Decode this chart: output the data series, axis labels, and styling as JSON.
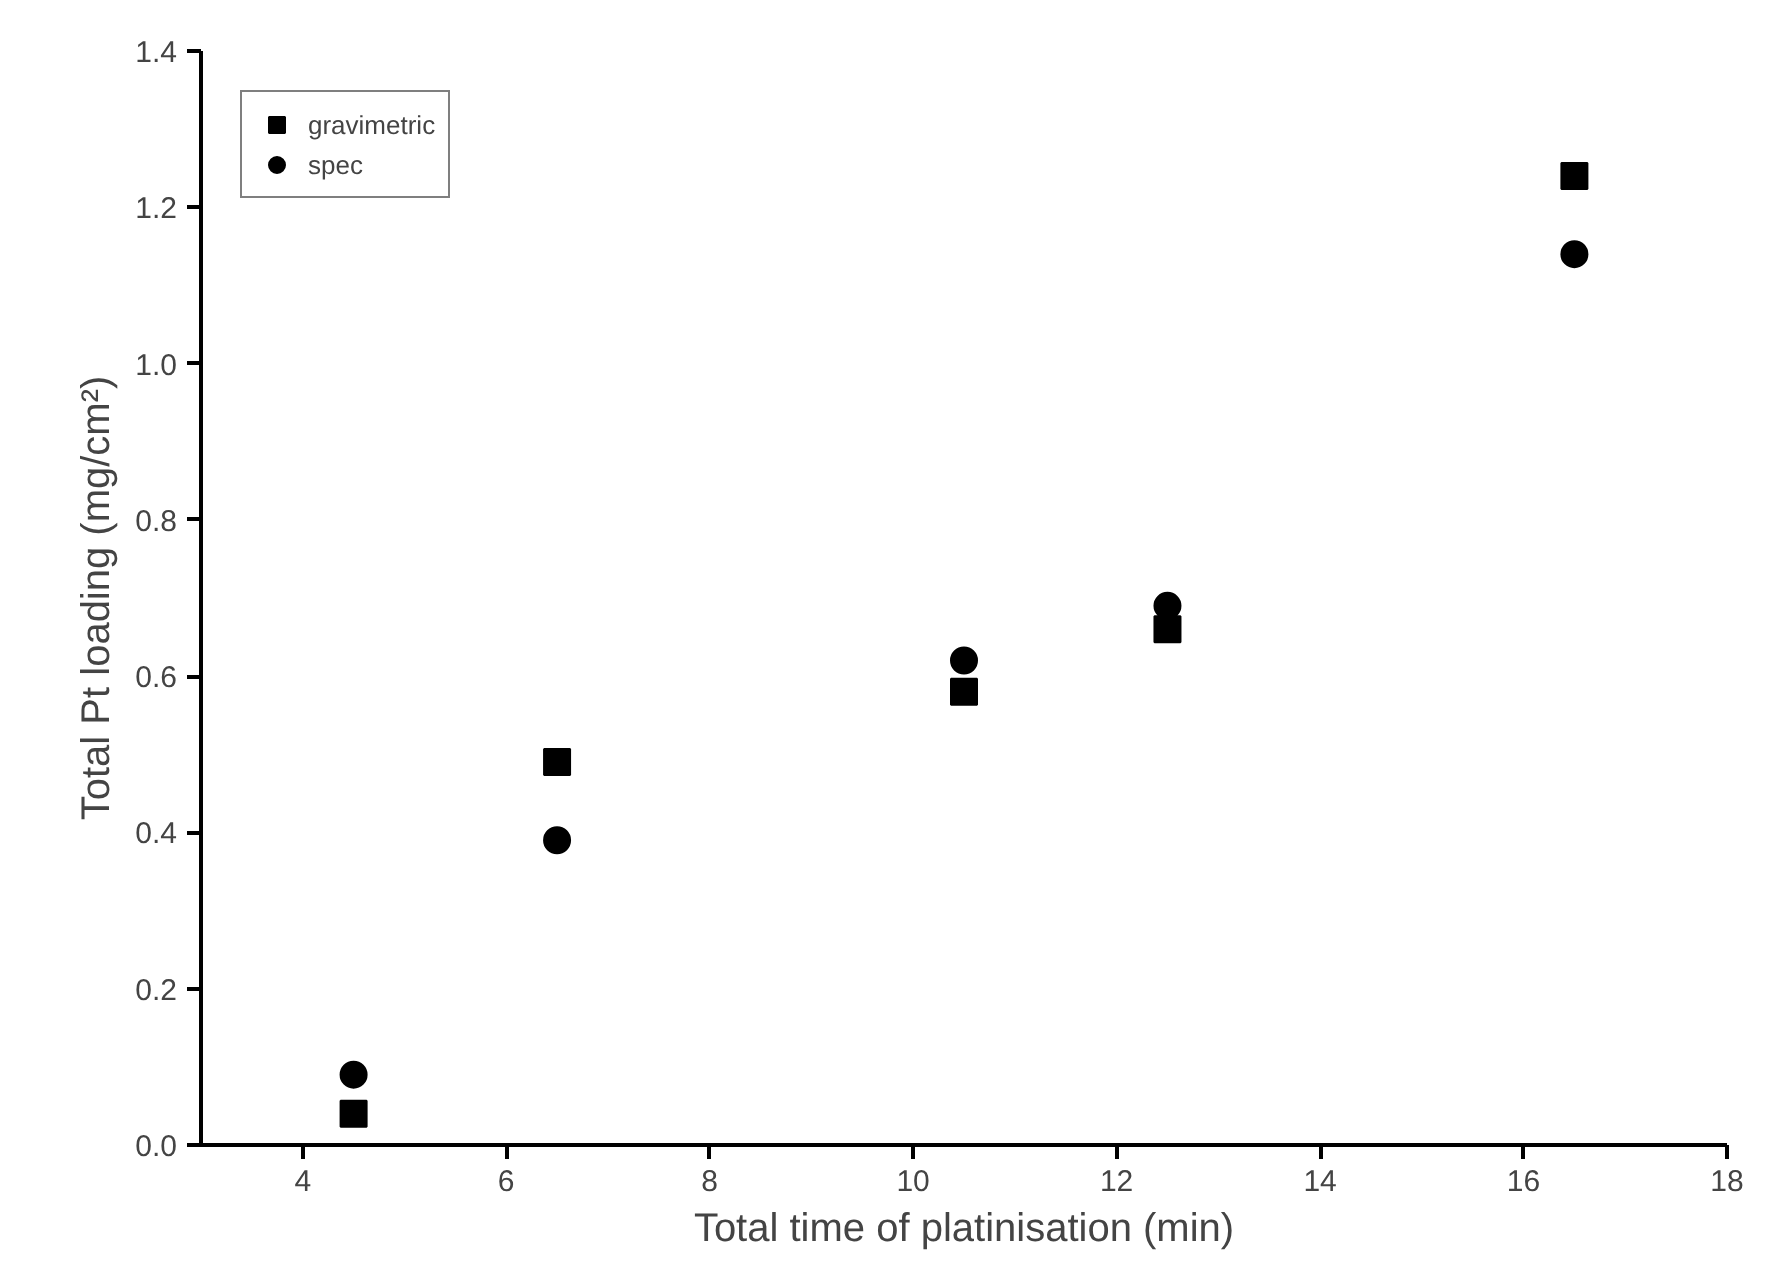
{
  "chart_data": {
    "type": "scatter",
    "xlabel": "Total time of platinisation (min)",
    "ylabel": "Total Pt loading (mg/cm²)",
    "x": [
      4.5,
      6.5,
      10.5,
      12.5,
      16.5
    ],
    "series": [
      {
        "name": "gravimetric",
        "color": "#000000",
        "marker": "square",
        "values": [
          0.04,
          0.49,
          0.58,
          0.66,
          1.24
        ]
      },
      {
        "name": "spec",
        "color": "#000000",
        "marker": "circle",
        "values": [
          0.09,
          0.39,
          0.62,
          0.69,
          1.14
        ]
      }
    ],
    "xlim": [
      3,
      18
    ],
    "xticks": [
      4,
      6,
      8,
      10,
      12,
      14,
      16,
      18
    ],
    "ylim": [
      0,
      1.4
    ],
    "yticks": [
      {
        "value": 0,
        "label": "0.0"
      },
      {
        "value": 0.2,
        "label": "0.2"
      },
      {
        "value": 0.4,
        "label": "0.4"
      },
      {
        "value": 0.6,
        "label": "0.6"
      },
      {
        "value": 0.8,
        "label": "0.8"
      },
      {
        "value": 1.0,
        "label": "1.0"
      },
      {
        "value": 1.2,
        "label": "1.2"
      },
      {
        "value": 1.4,
        "label": "1.4"
      }
    ],
    "grid": false,
    "legend": "top left"
  }
}
